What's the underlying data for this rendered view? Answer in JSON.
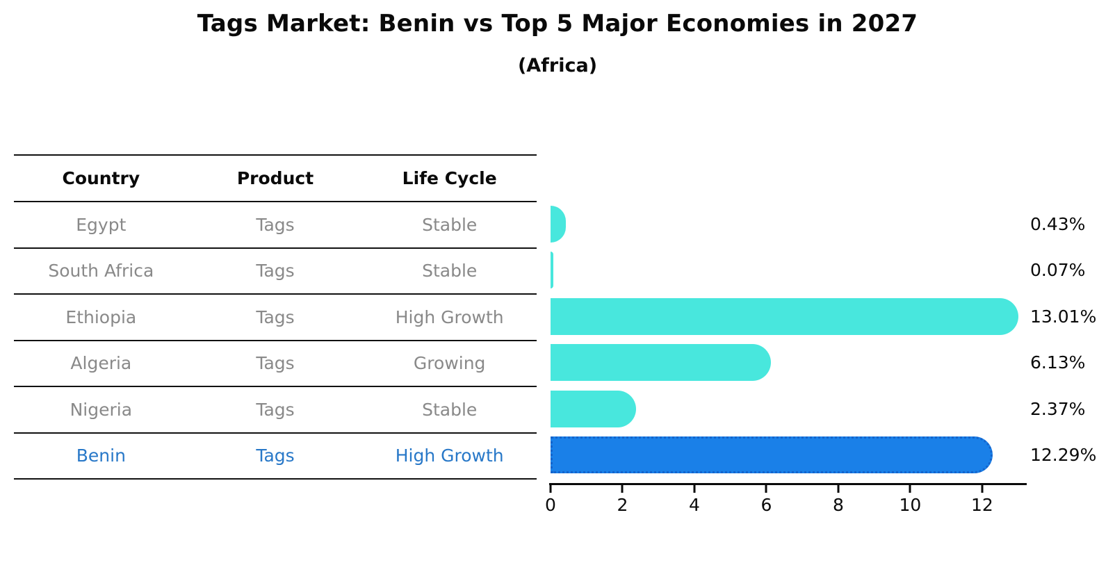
{
  "title": "Tags Market: Benin vs Top 5 Major Economies in 2027",
  "subtitle": "(Africa)",
  "table": {
    "headers": [
      "Country",
      "Product",
      "Life Cycle"
    ],
    "rows": [
      {
        "country": "Egypt",
        "product": "Tags",
        "life_cycle": "Stable"
      },
      {
        "country": "South Africa",
        "product": "Tags",
        "life_cycle": "Stable"
      },
      {
        "country": "Ethiopia",
        "product": "Tags",
        "life_cycle": "High Growth"
      },
      {
        "country": "Algeria",
        "product": "Tags",
        "life_cycle": "Growing"
      },
      {
        "country": "Nigeria",
        "product": "Tags",
        "life_cycle": "Stable"
      },
      {
        "country": "Benin",
        "product": "Tags",
        "life_cycle": "High Growth"
      }
    ]
  },
  "chart_data": {
    "type": "bar",
    "orientation": "horizontal",
    "categories": [
      "Egypt",
      "South Africa",
      "Ethiopia",
      "Algeria",
      "Nigeria",
      "Benin"
    ],
    "values": [
      0.43,
      0.07,
      13.01,
      6.13,
      2.37,
      12.29
    ],
    "value_labels": [
      "0.43%",
      "0.07%",
      "13.01%",
      "6.13%",
      "2.37%",
      "12.29%"
    ],
    "highlight_index": 5,
    "x_ticks": [
      "0",
      "2",
      "4",
      "6",
      "8",
      "10",
      "12"
    ],
    "x_tick_values": [
      0,
      2,
      4,
      6,
      8,
      10,
      12
    ],
    "xlim": [
      0,
      13.2
    ],
    "grid": false,
    "legend": "none"
  },
  "colors": {
    "bar_default": "#48e7dd",
    "bar_highlight": "#1a80e8",
    "bar_highlight_border": "#1464cc",
    "table_text": "#898989",
    "highlight_text": "#2878c8",
    "axis": "#0a0a0a"
  }
}
